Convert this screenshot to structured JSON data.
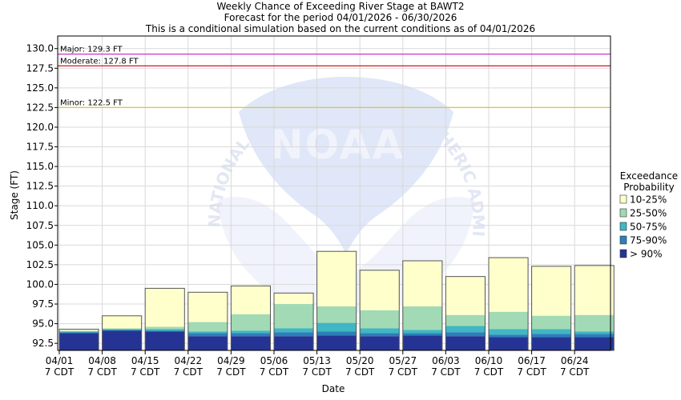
{
  "chart_data": {
    "type": "bar",
    "title_lines": [
      "Weekly Chance of Exceeding River Stage at BAWT2",
      "Forecast for the period 04/01/2026 - 06/30/2026",
      "This is a conditional simulation based on the current conditions as of 04/01/2026"
    ],
    "xlabel": "Date",
    "ylabel": "Stage (FT)",
    "ylim": [
      91.6,
      131.6
    ],
    "yticks": [
      "92.5",
      "95.0",
      "97.5",
      "100.0",
      "102.5",
      "105.0",
      "107.5",
      "110.0",
      "112.5",
      "115.0",
      "117.5",
      "120.0",
      "122.5",
      "125.0",
      "127.5",
      "130.0"
    ],
    "x_ticks": [
      {
        "date": "04/01",
        "tz": "7 CDT"
      },
      {
        "date": "04/08",
        "tz": "7 CDT"
      },
      {
        "date": "04/15",
        "tz": "7 CDT"
      },
      {
        "date": "04/22",
        "tz": "7 CDT"
      },
      {
        "date": "04/29",
        "tz": "7 CDT"
      },
      {
        "date": "05/06",
        "tz": "7 CDT"
      },
      {
        "date": "05/13",
        "tz": "7 CDT"
      },
      {
        "date": "05/20",
        "tz": "7 CDT"
      },
      {
        "date": "05/27",
        "tz": "7 CDT"
      },
      {
        "date": "06/03",
        "tz": "7 CDT"
      },
      {
        "date": "06/10",
        "tz": "7 CDT"
      },
      {
        "date": "06/17",
        "tz": "7 CDT"
      },
      {
        "date": "06/24",
        "tz": "7 CDT"
      }
    ],
    "flood_levels": [
      {
        "label": "Major: 129.3 FT",
        "value": 129.3,
        "color": "#cc33cc"
      },
      {
        "label": "Moderate: 127.8 FT",
        "value": 127.8,
        "color": "#cc0000"
      },
      {
        "label": "Minor: 122.5 FT",
        "value": 122.5,
        "color": "#e6cc00"
      }
    ],
    "legend_title": [
      "Exceedance",
      "Probability"
    ],
    "legend": [
      {
        "label": "10-25%",
        "color": "#ffffcc"
      },
      {
        "label": "25-50%",
        "color": "#a1dab4"
      },
      {
        "label": "50-75%",
        "color": "#41b6c4"
      },
      {
        "label": "75-90%",
        "color": "#2c7fb8"
      },
      {
        "label": "> 90%",
        "color": "#253494"
      }
    ],
    "bars": [
      {
        "week": "04/01",
        "levels": [
          94.3,
          94.1,
          94.0,
          93.9,
          93.8
        ]
      },
      {
        "week": "04/08",
        "levels": [
          96.0,
          94.4,
          94.3,
          94.2,
          94.1
        ]
      },
      {
        "week": "04/15",
        "levels": [
          99.5,
          94.6,
          94.3,
          94.1,
          94.0
        ]
      },
      {
        "week": "04/22",
        "levels": [
          99.0,
          95.2,
          94.0,
          93.8,
          93.4
        ]
      },
      {
        "week": "04/29",
        "levels": [
          99.8,
          96.2,
          94.1,
          93.8,
          93.4
        ]
      },
      {
        "week": "05/06",
        "levels": [
          98.9,
          97.5,
          94.4,
          93.9,
          93.4
        ]
      },
      {
        "week": "05/13",
        "levels": [
          104.2,
          97.2,
          95.1,
          94.0,
          93.5
        ]
      },
      {
        "week": "05/20",
        "levels": [
          101.8,
          96.7,
          94.4,
          93.8,
          93.4
        ]
      },
      {
        "week": "05/27",
        "levels": [
          103.0,
          97.2,
          94.2,
          93.8,
          93.5
        ]
      },
      {
        "week": "06/03",
        "levels": [
          101.0,
          96.1,
          94.7,
          93.9,
          93.4
        ]
      },
      {
        "week": "06/10",
        "levels": [
          103.4,
          96.5,
          94.3,
          93.6,
          93.3
        ]
      },
      {
        "week": "06/17",
        "levels": [
          102.3,
          96.0,
          94.3,
          93.7,
          93.3
        ]
      },
      {
        "week": "06/24",
        "levels": [
          102.4,
          96.1,
          94.0,
          93.7,
          93.3
        ]
      }
    ],
    "grid": true,
    "legend_position": "right"
  },
  "watermark": {
    "logo_text": "NOAA",
    "ring_text": "NATIONAL OCEANIC AND ATMOSPHERIC ADMINISTRATION"
  }
}
